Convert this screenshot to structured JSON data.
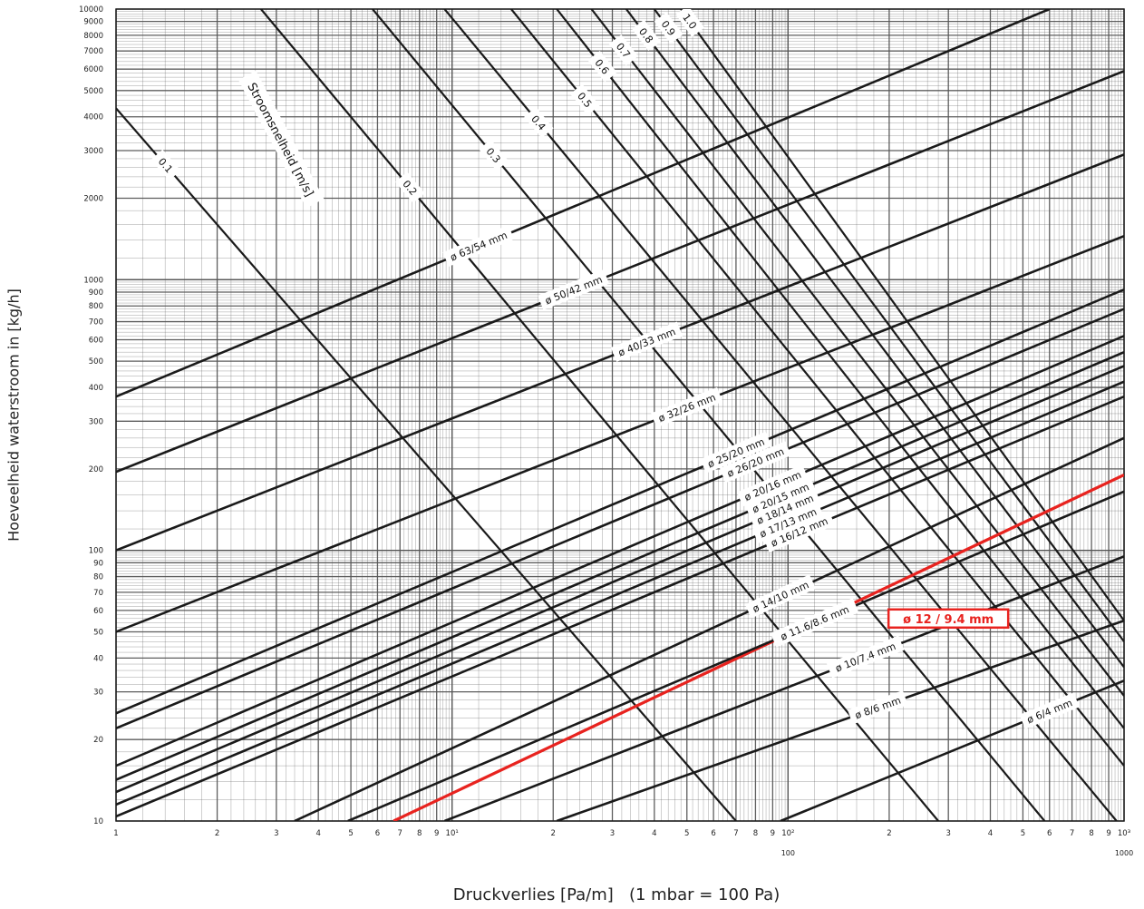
{
  "chart_data": {
    "type": "line",
    "title": "",
    "xlabel": "Druckverlies [Pa/m]   (1 mbar = 100 Pa)",
    "ylabel": "Hoeveelheid waterstroom in [kg/h]",
    "x_scale": "log",
    "y_scale": "log",
    "xlim": [
      1,
      1000
    ],
    "ylim": [
      10,
      10000
    ],
    "grid": true,
    "x_ticks": [
      {
        "value": 1,
        "label": "1"
      },
      {
        "value": 2,
        "label": "2"
      },
      {
        "value": 3,
        "label": "3"
      },
      {
        "value": 4,
        "label": "4"
      },
      {
        "value": 5,
        "label": "5"
      },
      {
        "value": 6,
        "label": "6"
      },
      {
        "value": 7,
        "label": "7"
      },
      {
        "value": 8,
        "label": "8"
      },
      {
        "value": 9,
        "label": "9"
      },
      {
        "value": 10,
        "label": "10¹"
      },
      {
        "value": 20,
        "label": "2"
      },
      {
        "value": 30,
        "label": "3"
      },
      {
        "value": 40,
        "label": "4"
      },
      {
        "value": 50,
        "label": "5"
      },
      {
        "value": 60,
        "label": "6"
      },
      {
        "value": 70,
        "label": "7"
      },
      {
        "value": 80,
        "label": "8"
      },
      {
        "value": 90,
        "label": "9"
      },
      {
        "value": 100,
        "label": "10²"
      },
      {
        "value": 200,
        "label": "2"
      },
      {
        "value": 300,
        "label": "3"
      },
      {
        "value": 400,
        "label": "4"
      },
      {
        "value": 500,
        "label": "5"
      },
      {
        "value": 600,
        "label": "6"
      },
      {
        "value": 700,
        "label": "7"
      },
      {
        "value": 800,
        "label": "8"
      },
      {
        "value": 900,
        "label": "9"
      },
      {
        "value": 1000,
        "label": "10³"
      }
    ],
    "x_subticks": [
      {
        "value": 100,
        "label": "100"
      },
      {
        "value": 1000,
        "label": "1000"
      }
    ],
    "y_ticks": [
      {
        "value": 10,
        "label": "10"
      },
      {
        "value": 20,
        "label": "20"
      },
      {
        "value": 30,
        "label": "30"
      },
      {
        "value": 40,
        "label": "40"
      },
      {
        "value": 50,
        "label": "50"
      },
      {
        "value": 60,
        "label": "60"
      },
      {
        "value": 70,
        "label": "70"
      },
      {
        "value": 80,
        "label": "80"
      },
      {
        "value": 90,
        "label": "90"
      },
      {
        "value": 100,
        "label": "100"
      },
      {
        "value": 200,
        "label": "200"
      },
      {
        "value": 300,
        "label": "300"
      },
      {
        "value": 400,
        "label": "400"
      },
      {
        "value": 500,
        "label": "500"
      },
      {
        "value": 600,
        "label": "600"
      },
      {
        "value": 700,
        "label": "700"
      },
      {
        "value": 800,
        "label": "800"
      },
      {
        "value": 900,
        "label": "900"
      },
      {
        "value": 1000,
        "label": "1000"
      },
      {
        "value": 2000,
        "label": "2000"
      },
      {
        "value": 3000,
        "label": "3000"
      },
      {
        "value": 4000,
        "label": "4000"
      },
      {
        "value": 5000,
        "label": "5000"
      },
      {
        "value": 6000,
        "label": "6000"
      },
      {
        "value": 7000,
        "label": "7000"
      },
      {
        "value": 8000,
        "label": "8000"
      },
      {
        "value": 9000,
        "label": "9000"
      },
      {
        "value": 10000,
        "label": "10000"
      }
    ],
    "velocity_title": "Stroomsnelheid [m/s]",
    "velocity_lines": [
      {
        "label": "0.1",
        "points": [
          [
            1,
            4300
          ],
          [
            70,
            10
          ]
        ]
      },
      {
        "label": "0.2",
        "points": [
          [
            2.7,
            10000
          ],
          [
            280,
            10
          ]
        ]
      },
      {
        "label": "0.3",
        "points": [
          [
            5.8,
            10000
          ],
          [
            580,
            10
          ]
        ]
      },
      {
        "label": "0.4",
        "points": [
          [
            9.5,
            10000
          ],
          [
            950,
            10
          ]
        ]
      },
      {
        "label": "0.5",
        "points": [
          [
            15,
            10000
          ],
          [
            1000,
            16
          ]
        ]
      },
      {
        "label": "0.6",
        "points": [
          [
            20.5,
            10000
          ],
          [
            1000,
            22
          ]
        ]
      },
      {
        "label": "0.7",
        "points": [
          [
            26,
            10000
          ],
          [
            1000,
            29
          ]
        ]
      },
      {
        "label": "0.8",
        "points": [
          [
            33,
            10000
          ],
          [
            1000,
            37
          ]
        ]
      },
      {
        "label": "0.9",
        "points": [
          [
            40,
            10000
          ],
          [
            1000,
            46
          ]
        ]
      },
      {
        "label": "1.0",
        "points": [
          [
            48,
            10000
          ],
          [
            1000,
            55
          ]
        ]
      }
    ],
    "series": [
      {
        "name": "ø 63/54 mm",
        "points": [
          [
            1,
            370
          ],
          [
            600,
            10000
          ]
        ]
      },
      {
        "name": "ø 50/42 mm",
        "points": [
          [
            1,
            195
          ],
          [
            1000,
            5900
          ]
        ]
      },
      {
        "name": "ø 40/33 mm",
        "points": [
          [
            1,
            100
          ],
          [
            1000,
            2900
          ]
        ]
      },
      {
        "name": "ø 32/26 mm",
        "points": [
          [
            1,
            50
          ],
          [
            1000,
            1450
          ]
        ]
      },
      {
        "name": "ø 25/20 mm",
        "points": [
          [
            1,
            25
          ],
          [
            1000,
            920
          ]
        ]
      },
      {
        "name": "ø 26/20 mm",
        "points": [
          [
            1,
            22
          ],
          [
            1000,
            780
          ]
        ]
      },
      {
        "name": "ø 20/16 mm",
        "points": [
          [
            1,
            16
          ],
          [
            1000,
            620
          ]
        ]
      },
      {
        "name": "ø 20/15 mm",
        "points": [
          [
            1,
            14.2
          ],
          [
            1000,
            540
          ]
        ]
      },
      {
        "name": "ø 18/14 mm",
        "points": [
          [
            1,
            12.8
          ],
          [
            1000,
            480
          ]
        ]
      },
      {
        "name": "ø 17/13 mm",
        "points": [
          [
            1,
            11.5
          ],
          [
            1000,
            420
          ]
        ]
      },
      {
        "name": "ø 16/12 mm",
        "points": [
          [
            1,
            10.4
          ],
          [
            1000,
            370
          ]
        ]
      },
      {
        "name": "ø 12 / 9.4 mm",
        "highlight": true,
        "points": [
          [
            6.7,
            10
          ],
          [
            1000,
            190
          ]
        ]
      },
      {
        "name": "ø 14/10 mm",
        "points": [
          [
            3.4,
            10
          ],
          [
            1000,
            260
          ]
        ]
      },
      {
        "name": "ø 11.6/8.6 mm",
        "points": [
          [
            4.9,
            10
          ],
          [
            1000,
            165
          ]
        ]
      },
      {
        "name": "ø 10/7.4 mm",
        "points": [
          [
            9.5,
            10
          ],
          [
            1000,
            95
          ]
        ]
      },
      {
        "name": "ø 8/6 mm",
        "points": [
          [
            20.5,
            10
          ],
          [
            1000,
            55
          ]
        ]
      },
      {
        "name": "ø 6/4 mm",
        "points": [
          [
            95,
            10
          ],
          [
            1000,
            33
          ]
        ]
      }
    ]
  },
  "colors": {
    "highlight": "#e8231f",
    "line": "#1a1a1a",
    "grid": "#555555",
    "background": "#ffffff"
  }
}
